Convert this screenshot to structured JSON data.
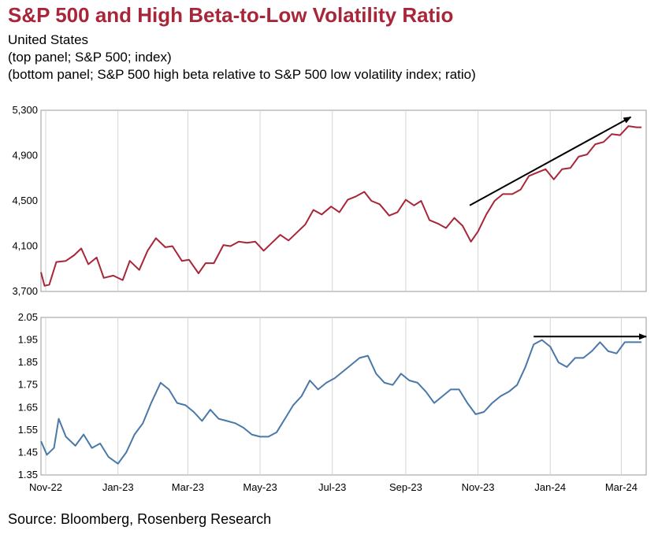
{
  "title": "S&P 500 and High Beta-to-Low Volatility Ratio",
  "subtitle_lines": [
    "United States",
    "(top panel; S&P 500; index)",
    "(bottom panel; S&P 500 high beta relative to S&P 500 low volatility index; ratio)"
  ],
  "source": "Source: Bloomberg, Rosenberg Research",
  "colors": {
    "title": "#a8263a",
    "top_series": "#a8263a",
    "bottom_series": "#4a78a8",
    "annotation_arrow": "#000000"
  },
  "chart_data": [
    {
      "type": "line",
      "panel": "top",
      "series_name": "S&P 500",
      "y_ticks": [
        "5,300",
        "4,900",
        "4,500",
        "4,100",
        "3,700"
      ],
      "ylim": [
        3700,
        5300
      ],
      "grid": "vertical",
      "x_tick_labels": [
        "Nov-22",
        "Jan-23",
        "Mar-23",
        "May-23",
        "Jul-23",
        "Sep-23",
        "Nov-23",
        "Jan-24",
        "Mar-24"
      ],
      "x_tick_dates": [
        "2022-11-01",
        "2023-01-01",
        "2023-03-01",
        "2023-05-01",
        "2023-07-01",
        "2023-09-01",
        "2023-11-01",
        "2024-01-01",
        "2024-03-01"
      ],
      "xlim": [
        "2022-10-28",
        "2024-03-22"
      ],
      "points": [
        [
          "2022-10-28",
          3870
        ],
        [
          "2022-10-31",
          3750
        ],
        [
          "2022-11-04",
          3760
        ],
        [
          "2022-11-10",
          3960
        ],
        [
          "2022-11-18",
          3970
        ],
        [
          "2022-11-25",
          4020
        ],
        [
          "2022-12-01",
          4080
        ],
        [
          "2022-12-07",
          3940
        ],
        [
          "2022-12-14",
          4000
        ],
        [
          "2022-12-20",
          3820
        ],
        [
          "2022-12-28",
          3840
        ],
        [
          "2023-01-05",
          3800
        ],
        [
          "2023-01-11",
          3970
        ],
        [
          "2023-01-19",
          3890
        ],
        [
          "2023-01-26",
          4060
        ],
        [
          "2023-02-02",
          4170
        ],
        [
          "2023-02-10",
          4090
        ],
        [
          "2023-02-16",
          4100
        ],
        [
          "2023-02-24",
          3970
        ],
        [
          "2023-03-02",
          3980
        ],
        [
          "2023-03-10",
          3860
        ],
        [
          "2023-03-16",
          3950
        ],
        [
          "2023-03-23",
          3950
        ],
        [
          "2023-03-31",
          4110
        ],
        [
          "2023-04-06",
          4100
        ],
        [
          "2023-04-13",
          4140
        ],
        [
          "2023-04-20",
          4130
        ],
        [
          "2023-04-27",
          4140
        ],
        [
          "2023-05-04",
          4060
        ],
        [
          "2023-05-11",
          4130
        ],
        [
          "2023-05-18",
          4200
        ],
        [
          "2023-05-25",
          4150
        ],
        [
          "2023-06-01",
          4220
        ],
        [
          "2023-06-08",
          4290
        ],
        [
          "2023-06-15",
          4420
        ],
        [
          "2023-06-22",
          4380
        ],
        [
          "2023-06-30",
          4450
        ],
        [
          "2023-07-07",
          4400
        ],
        [
          "2023-07-14",
          4510
        ],
        [
          "2023-07-21",
          4540
        ],
        [
          "2023-07-28",
          4580
        ],
        [
          "2023-08-03",
          4500
        ],
        [
          "2023-08-10",
          4470
        ],
        [
          "2023-08-18",
          4370
        ],
        [
          "2023-08-25",
          4400
        ],
        [
          "2023-09-01",
          4510
        ],
        [
          "2023-09-08",
          4460
        ],
        [
          "2023-09-14",
          4500
        ],
        [
          "2023-09-21",
          4330
        ],
        [
          "2023-09-28",
          4300
        ],
        [
          "2023-10-05",
          4260
        ],
        [
          "2023-10-12",
          4350
        ],
        [
          "2023-10-19",
          4280
        ],
        [
          "2023-10-26",
          4140
        ],
        [
          "2023-11-01",
          4230
        ],
        [
          "2023-11-08",
          4380
        ],
        [
          "2023-11-15",
          4500
        ],
        [
          "2023-11-22",
          4560
        ],
        [
          "2023-11-30",
          4560
        ],
        [
          "2023-12-07",
          4600
        ],
        [
          "2023-12-14",
          4720
        ],
        [
          "2023-12-21",
          4750
        ],
        [
          "2023-12-28",
          4780
        ],
        [
          "2024-01-04",
          4690
        ],
        [
          "2024-01-11",
          4780
        ],
        [
          "2024-01-18",
          4790
        ],
        [
          "2024-01-25",
          4890
        ],
        [
          "2024-02-01",
          4910
        ],
        [
          "2024-02-08",
          5000
        ],
        [
          "2024-02-15",
          5020
        ],
        [
          "2024-02-22",
          5090
        ],
        [
          "2024-02-29",
          5080
        ],
        [
          "2024-03-07",
          5160
        ],
        [
          "2024-03-14",
          5150
        ],
        [
          "2024-03-18",
          5150
        ]
      ],
      "annotation_arrow": {
        "from": [
          "2023-10-25",
          4460
        ],
        "to": [
          "2024-03-09",
          5240
        ]
      }
    },
    {
      "type": "line",
      "panel": "bottom",
      "series_name": "S&P 500 high beta relative to S&P 500 low volatility index",
      "y_ticks": [
        "2.05",
        "1.95",
        "1.85",
        "1.75",
        "1.65",
        "1.55",
        "1.45",
        "1.35"
      ],
      "ylim": [
        1.35,
        2.05
      ],
      "grid": "vertical",
      "x_tick_labels": [
        "Nov-22",
        "Jan-23",
        "Mar-23",
        "May-23",
        "Jul-23",
        "Sep-23",
        "Nov-23",
        "Jan-24",
        "Mar-24"
      ],
      "x_tick_dates": [
        "2022-11-01",
        "2023-01-01",
        "2023-03-01",
        "2023-05-01",
        "2023-07-01",
        "2023-09-01",
        "2023-11-01",
        "2024-01-01",
        "2024-03-01"
      ],
      "xlim": [
        "2022-10-28",
        "2024-03-22"
      ],
      "points": [
        [
          "2022-10-28",
          1.5
        ],
        [
          "2022-11-02",
          1.44
        ],
        [
          "2022-11-08",
          1.47
        ],
        [
          "2022-11-12",
          1.6
        ],
        [
          "2022-11-18",
          1.52
        ],
        [
          "2022-11-26",
          1.48
        ],
        [
          "2022-12-03",
          1.53
        ],
        [
          "2022-12-10",
          1.47
        ],
        [
          "2022-12-17",
          1.49
        ],
        [
          "2022-12-24",
          1.43
        ],
        [
          "2023-01-01",
          1.4
        ],
        [
          "2023-01-08",
          1.45
        ],
        [
          "2023-01-15",
          1.53
        ],
        [
          "2023-01-22",
          1.58
        ],
        [
          "2023-01-29",
          1.67
        ],
        [
          "2023-02-06",
          1.76
        ],
        [
          "2023-02-13",
          1.73
        ],
        [
          "2023-02-20",
          1.67
        ],
        [
          "2023-02-27",
          1.66
        ],
        [
          "2023-03-06",
          1.63
        ],
        [
          "2023-03-13",
          1.59
        ],
        [
          "2023-03-20",
          1.64
        ],
        [
          "2023-03-27",
          1.6
        ],
        [
          "2023-04-03",
          1.59
        ],
        [
          "2023-04-10",
          1.58
        ],
        [
          "2023-04-17",
          1.56
        ],
        [
          "2023-04-24",
          1.53
        ],
        [
          "2023-05-01",
          1.52
        ],
        [
          "2023-05-08",
          1.52
        ],
        [
          "2023-05-15",
          1.54
        ],
        [
          "2023-05-22",
          1.6
        ],
        [
          "2023-05-29",
          1.66
        ],
        [
          "2023-06-05",
          1.7
        ],
        [
          "2023-06-12",
          1.77
        ],
        [
          "2023-06-19",
          1.73
        ],
        [
          "2023-06-26",
          1.76
        ],
        [
          "2023-07-03",
          1.78
        ],
        [
          "2023-07-10",
          1.81
        ],
        [
          "2023-07-17",
          1.84
        ],
        [
          "2023-07-24",
          1.87
        ],
        [
          "2023-07-31",
          1.88
        ],
        [
          "2023-08-07",
          1.8
        ],
        [
          "2023-08-14",
          1.76
        ],
        [
          "2023-08-21",
          1.75
        ],
        [
          "2023-08-28",
          1.8
        ],
        [
          "2023-09-04",
          1.77
        ],
        [
          "2023-09-11",
          1.76
        ],
        [
          "2023-09-18",
          1.72
        ],
        [
          "2023-09-25",
          1.67
        ],
        [
          "2023-10-02",
          1.7
        ],
        [
          "2023-10-09",
          1.73
        ],
        [
          "2023-10-16",
          1.73
        ],
        [
          "2023-10-23",
          1.67
        ],
        [
          "2023-10-30",
          1.62
        ],
        [
          "2023-11-06",
          1.63
        ],
        [
          "2023-11-13",
          1.67
        ],
        [
          "2023-11-20",
          1.7
        ],
        [
          "2023-11-27",
          1.72
        ],
        [
          "2023-12-04",
          1.75
        ],
        [
          "2023-12-11",
          1.83
        ],
        [
          "2023-12-18",
          1.93
        ],
        [
          "2023-12-25",
          1.95
        ],
        [
          "2024-01-01",
          1.92
        ],
        [
          "2024-01-08",
          1.85
        ],
        [
          "2024-01-15",
          1.83
        ],
        [
          "2024-01-22",
          1.87
        ],
        [
          "2024-01-29",
          1.87
        ],
        [
          "2024-02-05",
          1.9
        ],
        [
          "2024-02-12",
          1.94
        ],
        [
          "2024-02-19",
          1.9
        ],
        [
          "2024-02-26",
          1.89
        ],
        [
          "2024-03-04",
          1.94
        ],
        [
          "2024-03-11",
          1.94
        ],
        [
          "2024-03-18",
          1.94
        ]
      ],
      "annotation_arrow": {
        "from": [
          "2023-12-18",
          1.965
        ],
        "to": [
          "2024-03-22",
          1.965
        ]
      }
    }
  ]
}
